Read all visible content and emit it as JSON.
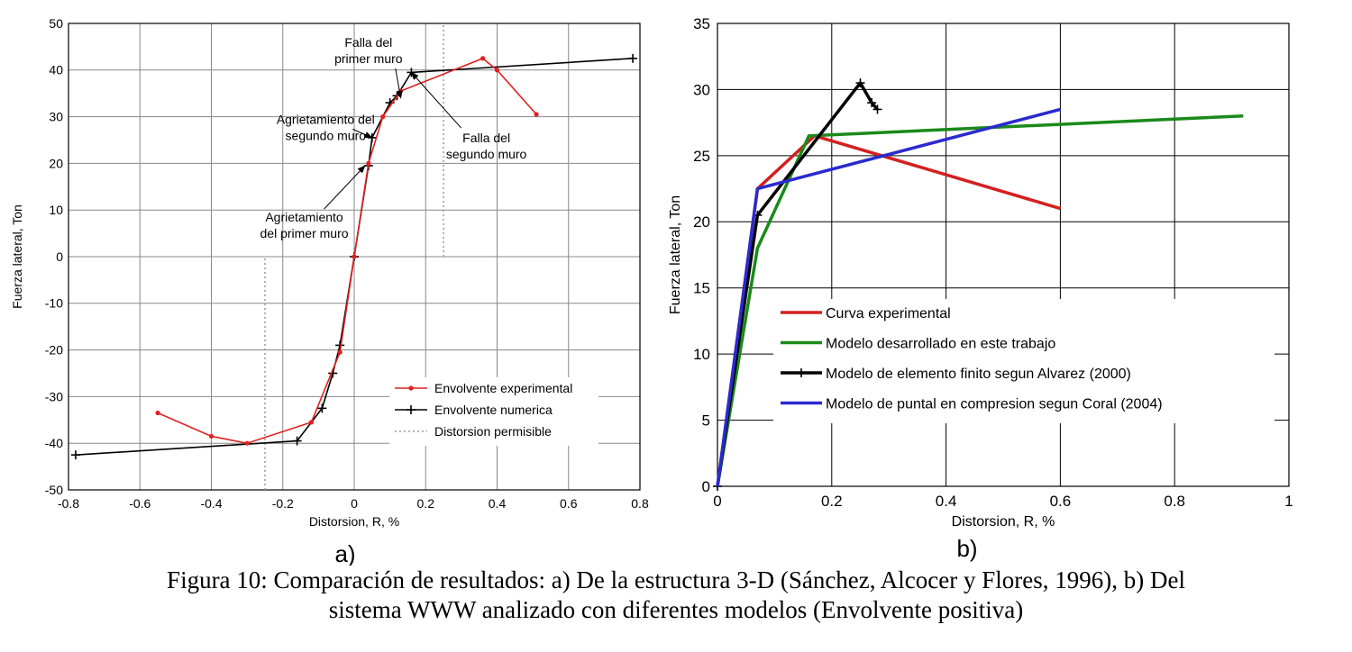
{
  "caption": {
    "line1": "Figura 10: Comparación de resultados: a) De la estructura 3-D (Sánchez, Alcocer y Flores, 1996), b) Del",
    "line2": "sistema WWW analizado con diferentes modelos (Envolvente positiva)"
  },
  "chart_data": [
    {
      "panel_label": "a)",
      "type": "line",
      "xlabel": "Distorsion, R, %",
      "ylabel": "Fuerza lateral, Ton",
      "xlim": [
        -0.8,
        0.8
      ],
      "ylim": [
        -50,
        50
      ],
      "xticks": [
        "-0.8",
        "-0.6",
        "-0.4",
        "-0.2",
        "0",
        "0.2",
        "0.4",
        "0.6",
        "0.8"
      ],
      "yticks": [
        "-50",
        "-40",
        "-30",
        "-20",
        "-10",
        "0",
        "10",
        "20",
        "30",
        "40",
        "50"
      ],
      "grid": true,
      "legend_position": "bottom-right",
      "series": [
        {
          "name": "Envolvente experimental",
          "color": "#e02020",
          "marker": "dot",
          "points": [
            [
              -0.55,
              -33.5
            ],
            [
              -0.4,
              -38.5
            ],
            [
              -0.3,
              -40
            ],
            [
              -0.12,
              -35.5
            ],
            [
              -0.04,
              -20.5
            ],
            [
              0,
              0
            ],
            [
              0.04,
              20
            ],
            [
              0.08,
              30
            ],
            [
              0.13,
              35.5
            ],
            [
              0.36,
              42.5
            ],
            [
              0.4,
              40
            ],
            [
              0.51,
              30.5
            ]
          ]
        },
        {
          "name": "Envolvente numerica",
          "color": "#000000",
          "marker": "plus",
          "points": [
            [
              -0.78,
              -42.5
            ],
            [
              -0.16,
              -39.5
            ],
            [
              -0.09,
              -32.5
            ],
            [
              -0.06,
              -25
            ],
            [
              -0.04,
              -19
            ],
            [
              0,
              0
            ],
            [
              0.04,
              19.5
            ],
            [
              0.05,
              25.5
            ],
            [
              0.1,
              33
            ],
            [
              0.12,
              34.5
            ],
            [
              0.16,
              39.5
            ],
            [
              0.78,
              42.5
            ]
          ]
        },
        {
          "name": "Distorsion permisible",
          "color": "#999999",
          "style": "dotted",
          "segments": [
            [
              [
                -0.25,
                -50
              ],
              [
                -0.25,
                0
              ]
            ],
            [
              [
                0.25,
                0
              ],
              [
                0.25,
                50
              ]
            ]
          ]
        }
      ],
      "annotations": [
        {
          "lines": [
            "Falla del",
            "primer muro"
          ],
          "text_at": [
            0.04,
            45
          ],
          "arrow_to": [
            0.13,
            34
          ]
        },
        {
          "lines": [
            "Agrietamiento del",
            "segundo muro"
          ],
          "text_at": [
            -0.08,
            28.5
          ],
          "arrow_to": [
            0.05,
            25.5
          ]
        },
        {
          "lines": [
            "Agrietamiento",
            "del primer muro"
          ],
          "text_at": [
            -0.14,
            7.5
          ],
          "arrow_to": [
            0.03,
            19.5
          ]
        },
        {
          "lines": [
            "Falla del",
            "segundo muro"
          ],
          "text_at": [
            0.37,
            24.5
          ],
          "arrow_to": [
            0.16,
            39.5
          ]
        }
      ]
    },
    {
      "panel_label": "b)",
      "type": "line",
      "xlabel": "Distorsion, R, %",
      "ylabel": "Fuerza lateral, Ton",
      "xlim": [
        0,
        1
      ],
      "ylim": [
        0,
        35
      ],
      "xticks": [
        "0",
        "0.2",
        "0.4",
        "0.6",
        "0.8",
        "1"
      ],
      "yticks": [
        "0",
        "5",
        "10",
        "15",
        "20",
        "25",
        "30",
        "35"
      ],
      "grid": true,
      "legend_position": "bottom-center",
      "series": [
        {
          "name": "Curva experimental",
          "color": "#d42020",
          "points": [
            [
              0,
              0
            ],
            [
              0.07,
              22.5
            ],
            [
              0.17,
              26.5
            ],
            [
              0.6,
              21
            ]
          ]
        },
        {
          "name": "Modelo desarrollado en este trabajo",
          "color": "#1a8a1a",
          "points": [
            [
              0,
              0
            ],
            [
              0.07,
              18
            ],
            [
              0.16,
              26.5
            ],
            [
              0.92,
              28
            ]
          ]
        },
        {
          "name": "Modelo de elemento finito segun Alvarez (2000)",
          "color": "#000000",
          "marker": "plus",
          "points": [
            [
              0,
              0
            ],
            [
              0.07,
              20.5
            ],
            [
              0.25,
              30.5
            ],
            [
              0.27,
              29
            ],
            [
              0.28,
              28.5
            ]
          ]
        },
        {
          "name": "Modelo de puntal en compresion segun Coral (2004)",
          "color": "#2a2ad0",
          "points": [
            [
              0,
              0
            ],
            [
              0.07,
              22.5
            ],
            [
              0.6,
              28.5
            ]
          ]
        }
      ]
    }
  ]
}
